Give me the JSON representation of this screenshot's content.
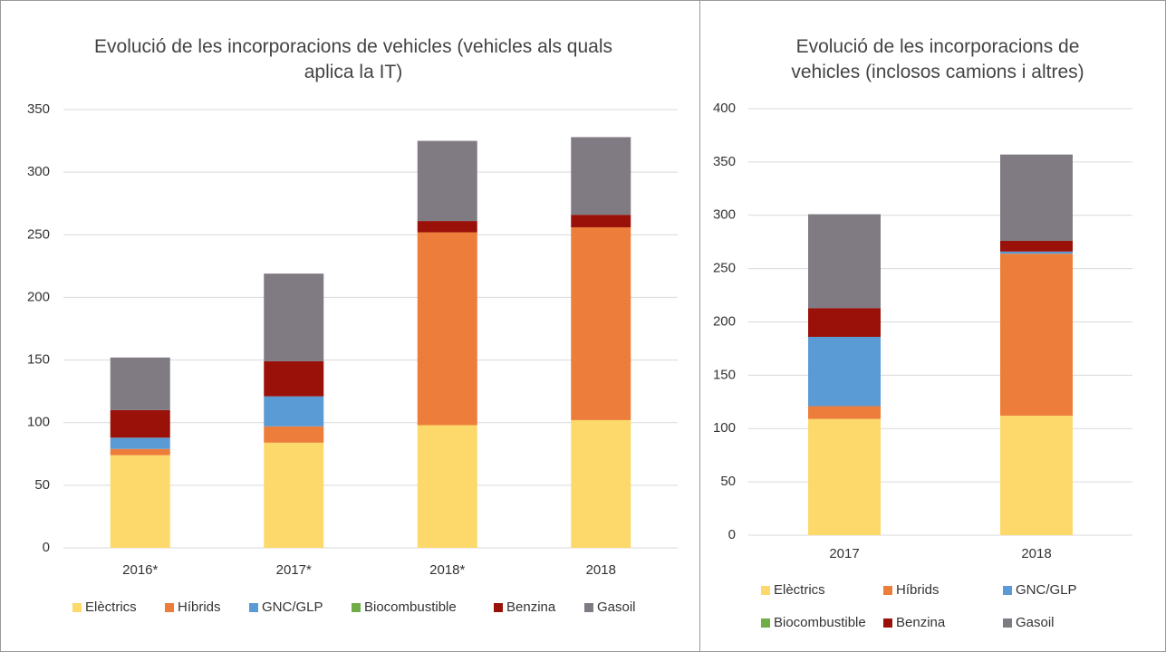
{
  "chart_data": [
    {
      "type": "stacked_bar",
      "title": "Evolució de les incorporacions de vehicles (vehicles als quals aplica la IT)",
      "categories": [
        "2016*",
        "2017*",
        "2018*",
        "2018"
      ],
      "series": [
        {
          "name": "Elèctrics",
          "color": "#fdd96b",
          "values": [
            74,
            84,
            98,
            102
          ]
        },
        {
          "name": "Híbrids",
          "color": "#ed7d3a",
          "values": [
            5,
            13,
            154,
            154
          ]
        },
        {
          "name": "GNC/GLP",
          "color": "#5b9bd5",
          "values": [
            9,
            24,
            0,
            0
          ]
        },
        {
          "name": "Biocombustible",
          "color": "#70ad47",
          "values": [
            0,
            0,
            0,
            0
          ]
        },
        {
          "name": "Benzina",
          "color": "#9a1109",
          "values": [
            22,
            28,
            9,
            10
          ]
        },
        {
          "name": "Gasoil",
          "color": "#807b83",
          "values": [
            42,
            70,
            64,
            62
          ]
        }
      ],
      "ylim": [
        0,
        350
      ],
      "yticks": [
        0,
        50,
        100,
        150,
        200,
        250,
        300,
        350
      ],
      "grid": true,
      "legend": "bottom"
    },
    {
      "type": "stacked_bar",
      "title": "Evolució de les incorporacions de vehicles (inclosos camions i altres)",
      "categories": [
        "2017",
        "2018"
      ],
      "series": [
        {
          "name": "Elèctrics",
          "color": "#fdd96b",
          "values": [
            109,
            112
          ]
        },
        {
          "name": "Híbrids",
          "color": "#ed7d3a",
          "values": [
            12,
            152
          ]
        },
        {
          "name": "GNC/GLP",
          "color": "#5b9bd5",
          "values": [
            65,
            2
          ]
        },
        {
          "name": "Biocombustible",
          "color": "#70ad47",
          "values": [
            0,
            0
          ]
        },
        {
          "name": "Benzina",
          "color": "#9a1109",
          "values": [
            27,
            10
          ]
        },
        {
          "name": "Gasoil",
          "color": "#807b83",
          "values": [
            88,
            81
          ]
        }
      ],
      "ylim": [
        0,
        400
      ],
      "yticks": [
        0,
        50,
        100,
        150,
        200,
        250,
        300,
        350,
        400
      ],
      "grid": true,
      "legend": "bottom"
    }
  ]
}
